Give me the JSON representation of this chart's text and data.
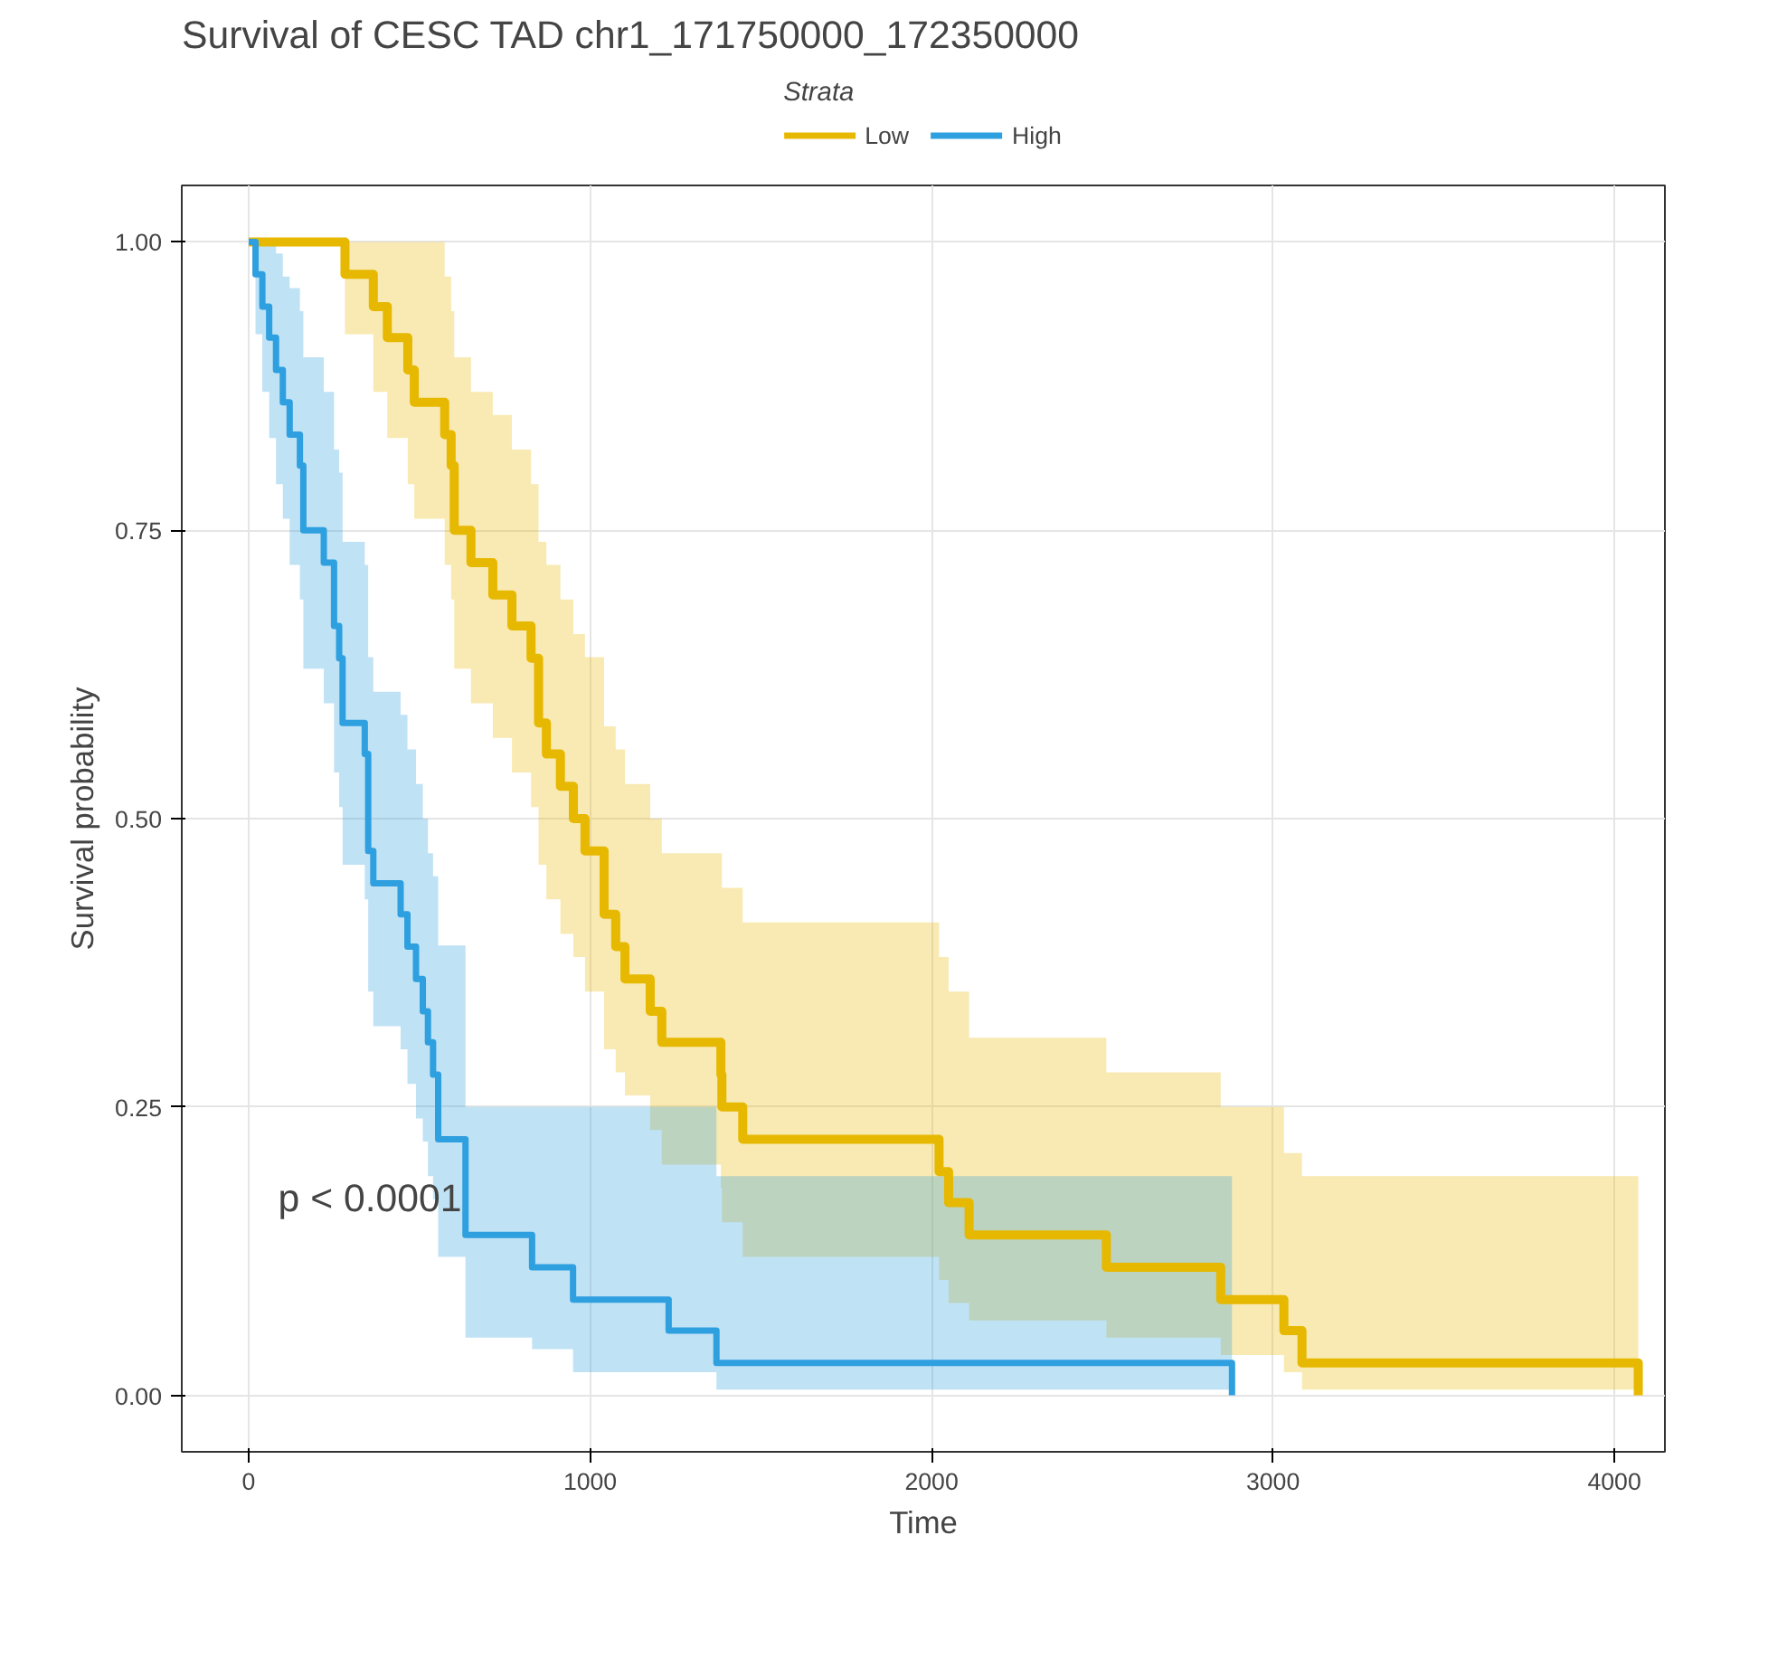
{
  "chart_data": {
    "type": "step",
    "title": "Survival of CESC TAD chr1_171750000_172350000",
    "xlabel": "Time",
    "ylabel": "Survival probability",
    "legend_title": "Strata",
    "legend": "top",
    "grid": true,
    "marker": "none",
    "line_style": "solid",
    "xlim": [
      -196,
      4148
    ],
    "ylim": [
      -0.049,
      1.049
    ],
    "xticks": [
      0,
      1000,
      2000,
      3000,
      4000
    ],
    "yticks": [
      {
        "value": 0,
        "label": "0.00"
      },
      {
        "value": 0.25,
        "label": "0.25"
      },
      {
        "value": 0.5,
        "label": "0.50"
      },
      {
        "value": 0.75,
        "label": "0.75"
      },
      {
        "value": 1,
        "label": "1.00"
      }
    ],
    "annotations": [
      "p < 0.0001"
    ],
    "series": [
      {
        "name": "Low",
        "color": "#e7b800",
        "x": [
          0,
          282,
          365,
          406,
          466,
          485,
          574,
          593,
          602,
          651,
          715,
          771,
          827,
          849,
          872,
          913,
          951,
          985,
          1041,
          1075,
          1102,
          1176,
          1210,
          1383,
          1386,
          1447,
          2022,
          2050,
          2110,
          2512,
          2847,
          3032,
          3085,
          4070
        ],
        "values": [
          1,
          0.972,
          0.944,
          0.917,
          0.889,
          0.861,
          0.833,
          0.806,
          0.75,
          0.722,
          0.694,
          0.667,
          0.639,
          0.583,
          0.556,
          0.528,
          0.5,
          0.472,
          0.417,
          0.389,
          0.361,
          0.333,
          0.306,
          0.278,
          0.25,
          0.222,
          0.194,
          0.167,
          0.139,
          0.111,
          0.083,
          0.056,
          0.028,
          0
        ],
        "lower": [
          1,
          0.92,
          0.87,
          0.83,
          0.79,
          0.76,
          0.72,
          0.69,
          0.63,
          0.6,
          0.57,
          0.54,
          0.51,
          0.46,
          0.43,
          0.4,
          0.38,
          0.35,
          0.3,
          0.28,
          0.26,
          0.23,
          0.2,
          0.18,
          0.15,
          0.12,
          0.1,
          0.08,
          0.065,
          0.05,
          0.035,
          0.02,
          0.005,
          0.005
        ],
        "upper": [
          1,
          1,
          1,
          1,
          1,
          1,
          0.97,
          0.94,
          0.9,
          0.87,
          0.85,
          0.82,
          0.79,
          0.74,
          0.72,
          0.69,
          0.66,
          0.64,
          0.58,
          0.56,
          0.53,
          0.5,
          0.47,
          0.47,
          0.44,
          0.41,
          0.38,
          0.35,
          0.31,
          0.28,
          0.25,
          0.21,
          0.19,
          0.19
        ]
      },
      {
        "name": "High",
        "color": "#2e9fdf",
        "x": [
          0,
          20,
          40,
          60,
          80,
          100,
          120,
          150,
          160,
          220,
          250,
          265,
          275,
          340,
          350,
          365,
          445,
          465,
          490,
          510,
          525,
          540,
          555,
          635,
          830,
          950,
          1230,
          1370,
          2880
        ],
        "values": [
          1,
          0.972,
          0.944,
          0.917,
          0.889,
          0.861,
          0.833,
          0.806,
          0.75,
          0.722,
          0.667,
          0.639,
          0.583,
          0.556,
          0.472,
          0.444,
          0.417,
          0.389,
          0.361,
          0.333,
          0.306,
          0.278,
          0.222,
          0.139,
          0.111,
          0.083,
          0.056,
          0.028,
          0
        ],
        "lower": [
          1,
          0.92,
          0.87,
          0.83,
          0.79,
          0.76,
          0.72,
          0.69,
          0.63,
          0.6,
          0.54,
          0.51,
          0.46,
          0.43,
          0.35,
          0.32,
          0.3,
          0.27,
          0.24,
          0.22,
          0.19,
          0.17,
          0.12,
          0.05,
          0.04,
          0.02,
          0.02,
          0.005,
          0.005
        ],
        "upper": [
          1,
          1,
          1,
          1,
          0.99,
          0.97,
          0.96,
          0.94,
          0.9,
          0.87,
          0.82,
          0.8,
          0.74,
          0.72,
          0.64,
          0.61,
          0.59,
          0.56,
          0.53,
          0.5,
          0.47,
          0.45,
          0.39,
          0.25,
          0.25,
          0.25,
          0.25,
          0.19,
          0.19
        ]
      }
    ]
  }
}
